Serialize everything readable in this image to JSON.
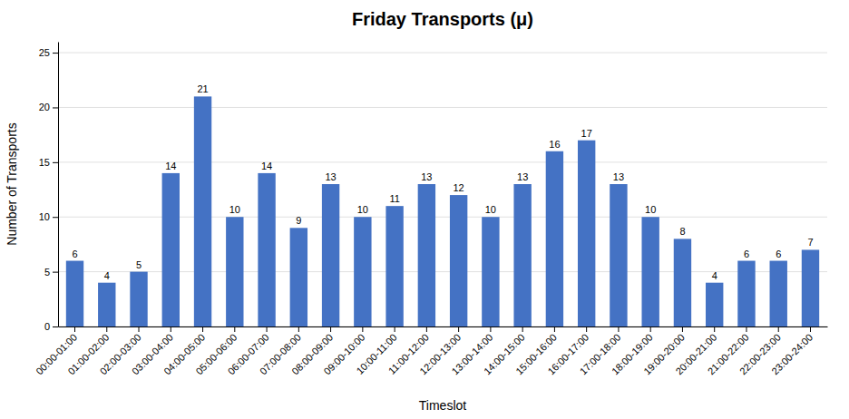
{
  "chart_data": {
    "type": "bar",
    "title": "Friday Transports (μ)",
    "xlabel": "Timeslot",
    "ylabel": "Number of Transports",
    "categories": [
      "00:00-01:00",
      "01:00-02:00",
      "02:00-03:00",
      "03:00-04:00",
      "04:00-05:00",
      "05:00-06:00",
      "06:00-07:00",
      "07:00-08:00",
      "08:00-09:00",
      "09:00-10:00",
      "10:00-11:00",
      "11:00-12:00",
      "12:00-13:00",
      "13:00-14:00",
      "14:00-15:00",
      "15:00-16:00",
      "16:00-17:00",
      "17:00-18:00",
      "18:00-19:00",
      "19:00-20:00",
      "20:00-21:00",
      "21:00-22:00",
      "22:00-23:00",
      "23:00-24:00"
    ],
    "values": [
      6,
      4,
      5,
      14,
      21,
      10,
      14,
      9,
      13,
      10,
      11,
      13,
      12,
      10,
      13,
      16,
      17,
      13,
      10,
      8,
      4,
      6,
      6,
      7
    ],
    "color": "#4472C4",
    "ylim": [
      0,
      26
    ],
    "yticks": [
      0,
      5,
      10,
      15,
      20,
      25
    ],
    "grid": true,
    "data_labels": true
  }
}
